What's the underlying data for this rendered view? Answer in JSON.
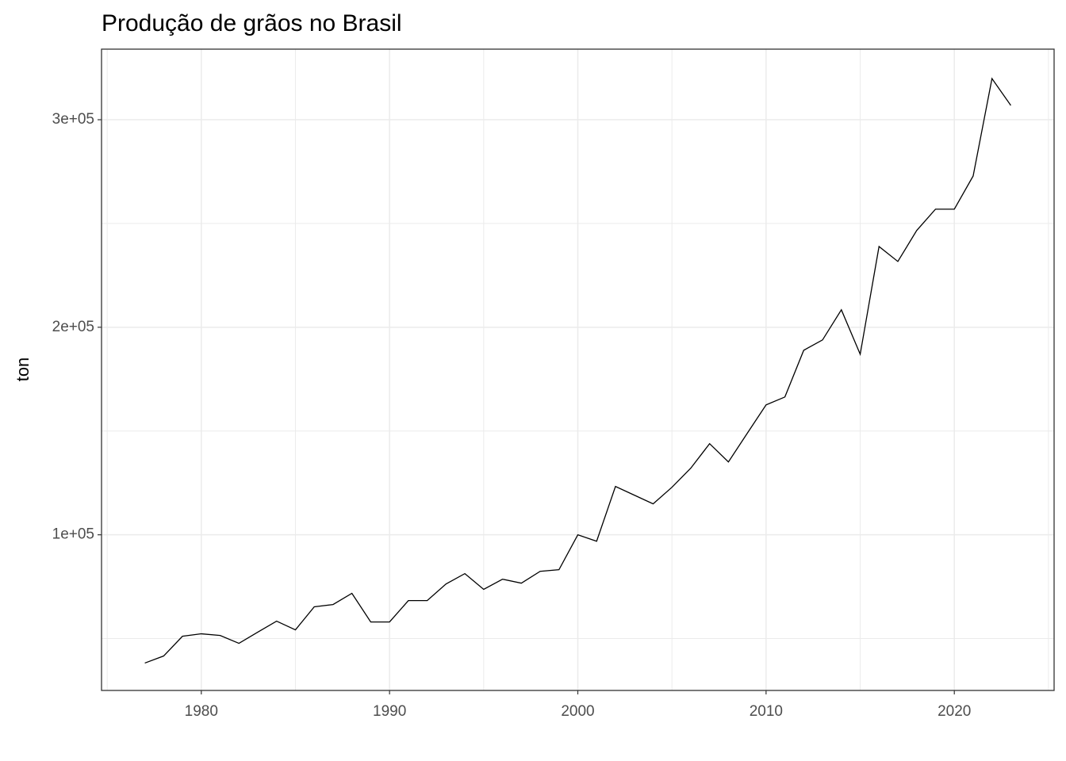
{
  "chart_data": {
    "type": "line",
    "title": "Produção de grãos no Brasil",
    "y_label": "ton",
    "x": [
      1977,
      1978,
      1979,
      1980,
      1981,
      1982,
      1983,
      1984,
      1985,
      1986,
      1987,
      1988,
      1989,
      1990,
      1991,
      1992,
      1993,
      1994,
      1995,
      1996,
      1997,
      1998,
      1999,
      2000,
      2001,
      2002,
      2003,
      2004,
      2005,
      2006,
      2007,
      2008,
      2009,
      2010,
      2011,
      2012,
      2013,
      2014,
      2015,
      2016,
      2017,
      2018,
      2019,
      2020,
      2021,
      2022,
      2023
    ],
    "series": [
      {
        "color": "#000000",
        "values": [
          38200,
          41600,
          51100,
          52300,
          51500,
          47700,
          53100,
          58400,
          54200,
          65300,
          66400,
          71800,
          58000,
          58000,
          68300,
          68300,
          76300,
          81300,
          73700,
          78600,
          76700,
          82400,
          83200,
          100000,
          96900,
          123300,
          119100,
          114900,
          122900,
          132100,
          143900,
          135100,
          148900,
          162600,
          166400,
          188900,
          193900,
          208400,
          187000,
          238900,
          231700,
          246600,
          256900,
          256900,
          272900,
          319800,
          306900
        ]
      }
    ],
    "xlim": [
      1974.7,
      2025.3
    ],
    "xticks": [
      1980,
      1990,
      2000,
      2010,
      2020
    ],
    "ylim": [
      25000,
      334000
    ],
    "yticks": [
      {
        "value": 100000,
        "label": "1e+05"
      },
      {
        "value": 200000,
        "label": "2e+05"
      },
      {
        "value": 300000,
        "label": "3e+05"
      }
    ],
    "grid": true
  }
}
